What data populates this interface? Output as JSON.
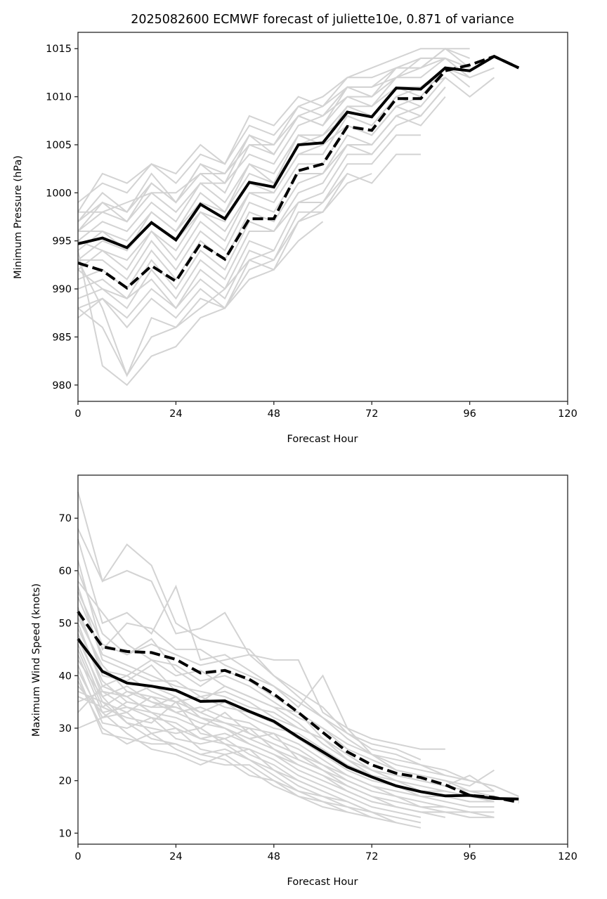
{
  "figure": {
    "title": "2025082600 ECMWF forecast of juliette10e, 0.871 of variance"
  },
  "chart_data": [
    {
      "type": "line",
      "id": "pressure",
      "title": "2025082600 ECMWF forecast of juliette10e, 0.871 of variance",
      "xlabel": "Forecast Hour",
      "ylabel": "Minimum Pressure (hPa)",
      "xlim": [
        0,
        120
      ],
      "ylim": [
        978.3,
        1016.7
      ],
      "xticks": [
        0,
        24,
        48,
        72,
        96,
        120
      ],
      "yticks": [
        980,
        985,
        990,
        995,
        1000,
        1005,
        1010,
        1015
      ],
      "grid": false,
      "legend": "none",
      "x": [
        0,
        6,
        12,
        18,
        24,
        30,
        36,
        42,
        48,
        54,
        60,
        66,
        72,
        78,
        84,
        90,
        96,
        102,
        108
      ],
      "series": [
        {
          "name": "mean",
          "style": "solid",
          "color": "#000000",
          "values": [
            994.7,
            995.3,
            994.3,
            996.9,
            995.1,
            998.8,
            997.3,
            1001.1,
            1000.6,
            1005.0,
            1005.2,
            1008.4,
            1007.9,
            1010.9,
            1010.8,
            1013.0,
            1012.7,
            1014.2,
            1013.0
          ]
        },
        {
          "name": "weighted",
          "style": "dashed",
          "color": "#000000",
          "values": [
            992.7,
            991.9,
            990.1,
            992.4,
            990.8,
            994.7,
            993.1,
            997.3,
            997.3,
            1002.3,
            1003.0,
            1006.9,
            1006.5,
            1009.8,
            1009.8,
            1012.7,
            1013.3,
            1014.2,
            1013.0
          ]
        }
      ],
      "members_color": "#d3d3d3",
      "members": [
        [
          998,
          1002,
          1001,
          1003,
          1002,
          1005,
          1003,
          1008,
          1007,
          1010,
          1009,
          1012,
          1013,
          1014,
          1015,
          1015,
          1015
        ],
        [
          999,
          1001,
          1000,
          1003,
          1001,
          1004,
          1003,
          1007,
          1006,
          1009,
          1010,
          1012,
          1012,
          1013,
          1014,
          1014,
          1013
        ],
        [
          997,
          1000,
          998,
          1002,
          999,
          1003,
          1002,
          1006,
          1005,
          1009,
          1008,
          1011,
          1011,
          1013,
          1013,
          1015,
          1014
        ],
        [
          996,
          999,
          997,
          1001,
          999,
          1002,
          1000,
          1005,
          1004,
          1008,
          1007,
          1010,
          1010,
          1012,
          1012,
          1014
        ],
        [
          998,
          998,
          999,
          1000,
          998,
          1001,
          1001,
          1004,
          1003,
          1007,
          1008,
          1010,
          1009,
          1012,
          1013,
          1014,
          1012,
          1013
        ],
        [
          995,
          997,
          996,
          999,
          997,
          1001,
          999,
          1003,
          1002,
          1006,
          1006,
          1009,
          1009,
          1011,
          1011,
          1013,
          1012
        ],
        [
          996,
          996,
          995,
          998,
          996,
          1000,
          998,
          1003,
          1001,
          1006,
          1005,
          1009,
          1008,
          1011,
          1010,
          1013,
          1011
        ],
        [
          994,
          996,
          994,
          998,
          996,
          999,
          998,
          1002,
          1001,
          1005,
          1006,
          1008,
          1007,
          1010,
          1011,
          1012
        ],
        [
          993,
          995,
          994,
          997,
          995,
          998,
          997,
          1001,
          1000,
          1004,
          1004,
          1008,
          1007,
          1010,
          1009,
          1012,
          1010,
          1012
        ],
        [
          995,
          994,
          993,
          996,
          994,
          998,
          996,
          1000,
          1000,
          1004,
          1005,
          1007,
          1006,
          1009,
          1010
        ],
        [
          992,
          994,
          992,
          996,
          993,
          997,
          995,
          1000,
          999,
          1003,
          1003,
          1007,
          1006,
          1009,
          1008,
          1011
        ],
        [
          993,
          993,
          991,
          995,
          992,
          996,
          994,
          999,
          998,
          1002,
          1002,
          1006,
          1005,
          1008,
          1007,
          1010
        ],
        [
          991,
          992,
          990,
          994,
          991,
          995,
          993,
          998,
          997,
          1001,
          1002,
          1005,
          1005,
          1008,
          1009
        ],
        [
          990,
          991,
          989,
          993,
          990,
          994,
          992,
          997,
          996,
          1000,
          1001,
          1005,
          1004,
          1007,
          1008,
          1011
        ],
        [
          992,
          990,
          988,
          992,
          989,
          993,
          991,
          996,
          996,
          999,
          1000,
          1004,
          1004,
          1007
        ],
        [
          989,
          990,
          989,
          991,
          988,
          992,
          990,
          995,
          994,
          999,
          999,
          1003,
          1003,
          1006,
          1006
        ],
        [
          988,
          989,
          987,
          990,
          988,
          991,
          989,
          994,
          993,
          998,
          998,
          1002,
          1001,
          1004,
          1004
        ],
        [
          987,
          989,
          986,
          989,
          987,
          990,
          988,
          993,
          992,
          997,
          999,
          1002
        ],
        [
          993,
          988,
          981,
          987,
          986,
          989,
          988,
          992,
          993,
          997,
          998,
          1001,
          1002
        ],
        [
          994,
          982,
          980,
          983,
          984,
          987,
          988,
          991,
          992,
          995,
          997
        ],
        [
          988,
          986,
          981,
          985,
          986,
          988,
          990,
          993,
          994
        ],
        [
          997,
          999,
          998,
          1001,
          999,
          1003,
          1001,
          1006,
          1004,
          1008,
          1009,
          1011,
          1010,
          1013,
          1013,
          1015,
          1013
        ],
        [
          996,
          998,
          997,
          1000,
          1000,
          1002,
          1002,
          1005,
          1005,
          1008,
          1007,
          1011,
          1011,
          1012,
          1014,
          1014
        ]
      ]
    },
    {
      "type": "line",
      "id": "wind",
      "title": "",
      "xlabel": "Forecast Hour",
      "ylabel": "Maximum Wind Speed (knots)",
      "xlim": [
        0,
        120
      ],
      "ylim": [
        7.9,
        78.2
      ],
      "xticks": [
        0,
        24,
        48,
        72,
        96,
        120
      ],
      "yticks": [
        10,
        20,
        30,
        40,
        50,
        60,
        70
      ],
      "grid": false,
      "legend": "none",
      "x": [
        0,
        6,
        12,
        18,
        24,
        30,
        36,
        42,
        48,
        54,
        60,
        66,
        72,
        78,
        84,
        90,
        96,
        102,
        108
      ],
      "series": [
        {
          "name": "mean",
          "style": "solid",
          "color": "#000000",
          "values": [
            47.0,
            40.8,
            38.6,
            38.0,
            37.2,
            35.1,
            35.2,
            33.2,
            31.3,
            28.3,
            25.5,
            22.6,
            20.7,
            19.0,
            17.9,
            17.1,
            17.2,
            16.6,
            16.5
          ]
        },
        {
          "name": "weighted",
          "style": "dashed",
          "color": "#000000",
          "values": [
            52.2,
            45.5,
            44.6,
            44.4,
            43.1,
            40.5,
            41.0,
            39.3,
            36.5,
            33.0,
            29.2,
            25.5,
            23.0,
            21.4,
            20.6,
            19.2,
            17.2,
            16.8,
            15.9
          ]
        }
      ],
      "members_color": "#d3d3d3",
      "members": [
        [
          75,
          58,
          60,
          58,
          48,
          49,
          52,
          44,
          43,
          43,
          33,
          30,
          28,
          27,
          26,
          26
        ],
        [
          68,
          58,
          65,
          61,
          50,
          47,
          46,
          45,
          40,
          36,
          32,
          29,
          27,
          26,
          24
        ],
        [
          66,
          50,
          52,
          48,
          57,
          43,
          44,
          41,
          38,
          34,
          40,
          30,
          25,
          24,
          23,
          21
        ],
        [
          62,
          45,
          50,
          49,
          45,
          45,
          42,
          40,
          38,
          35,
          32,
          28,
          25,
          22,
          21,
          20,
          19,
          22
        ],
        [
          60,
          48,
          44,
          46,
          44,
          42,
          43,
          44,
          40,
          37,
          34,
          29,
          26,
          25,
          23,
          22,
          20,
          19,
          17
        ],
        [
          58,
          52,
          46,
          43,
          40,
          41,
          38,
          36,
          34,
          33,
          30,
          26,
          24,
          22,
          21,
          20,
          18,
          18
        ],
        [
          56,
          46,
          44,
          47,
          41,
          38,
          41,
          39,
          36,
          33,
          28,
          25,
          22,
          21,
          20,
          19,
          18,
          17
        ],
        [
          55,
          44,
          42,
          40,
          38,
          37,
          36,
          34,
          33,
          30,
          28,
          25,
          22,
          20,
          19,
          18,
          17,
          16
        ],
        [
          53,
          40,
          39,
          42,
          37,
          35,
          38,
          36,
          34,
          31,
          27,
          24,
          21,
          19,
          18,
          18,
          17,
          16
        ],
        [
          51,
          42,
          37,
          36,
          35,
          36,
          34,
          33,
          31,
          28,
          25,
          22,
          20,
          19,
          17,
          17,
          16,
          16
        ],
        [
          50,
          38,
          36,
          38,
          36,
          33,
          35,
          32,
          30,
          29,
          26,
          23,
          21,
          20,
          18,
          17,
          16
        ],
        [
          49,
          39,
          35,
          34,
          34,
          32,
          31,
          30,
          29,
          27,
          24,
          21,
          19,
          18,
          17,
          16,
          15,
          15
        ],
        [
          48,
          36,
          38,
          35,
          33,
          34,
          32,
          31,
          28,
          26,
          23,
          21,
          19,
          17,
          16,
          15,
          14,
          14
        ],
        [
          47,
          37,
          34,
          33,
          32,
          30,
          33,
          29,
          27,
          25,
          22,
          20,
          18,
          17,
          15,
          15,
          14,
          13
        ],
        [
          46,
          35,
          33,
          36,
          33,
          31,
          30,
          28,
          29,
          24,
          22,
          19,
          17,
          16,
          15,
          14,
          14
        ],
        [
          45,
          34,
          32,
          31,
          35,
          29,
          28,
          30,
          26,
          23,
          21,
          19,
          17,
          15,
          14,
          14,
          13,
          13
        ],
        [
          44,
          33,
          34,
          32,
          31,
          28,
          29,
          27,
          25,
          22,
          20,
          18,
          16,
          15,
          14,
          13
        ],
        [
          43,
          36,
          31,
          30,
          29,
          30,
          27,
          26,
          24,
          21,
          19,
          17,
          15,
          14,
          13
        ],
        [
          42,
          31,
          30,
          32,
          28,
          27,
          28,
          25,
          23,
          20,
          18,
          16,
          14,
          13,
          12
        ],
        [
          41,
          32,
          33,
          29,
          30,
          26,
          25,
          26,
          22,
          19,
          17,
          16,
          14,
          12,
          11
        ],
        [
          40,
          29,
          28,
          27,
          27,
          25,
          26,
          24,
          21,
          18,
          17,
          15,
          13,
          12
        ],
        [
          39,
          30,
          27,
          29,
          26,
          24,
          23,
          23,
          20,
          17,
          16,
          14,
          13
        ],
        [
          38,
          33,
          29,
          26,
          25,
          23,
          25,
          22,
          19,
          17,
          15,
          14
        ],
        [
          37,
          35,
          31,
          28,
          27,
          25,
          24,
          21,
          20,
          18,
          16,
          15,
          14
        ],
        [
          35,
          37,
          36,
          33,
          30,
          28,
          27,
          24,
          22,
          20,
          18
        ],
        [
          33,
          38,
          40,
          37,
          35,
          33,
          31,
          29,
          27,
          25,
          23,
          20,
          18
        ],
        [
          30,
          32,
          35,
          34,
          36,
          32,
          30,
          28,
          26,
          24,
          22,
          19,
          17
        ],
        [
          57,
          43,
          41,
          39,
          39,
          36,
          37,
          35,
          32,
          30,
          28,
          24,
          22,
          21,
          20,
          19,
          21,
          18
        ],
        [
          52,
          41,
          40,
          43,
          42,
          39,
          40,
          38,
          35,
          32,
          30,
          27,
          25,
          23,
          22,
          21,
          20,
          19,
          17
        ],
        [
          36,
          34,
          37,
          35,
          34,
          32,
          30,
          27,
          25,
          23,
          21,
          18,
          16,
          15,
          14,
          14,
          13
        ]
      ]
    }
  ]
}
